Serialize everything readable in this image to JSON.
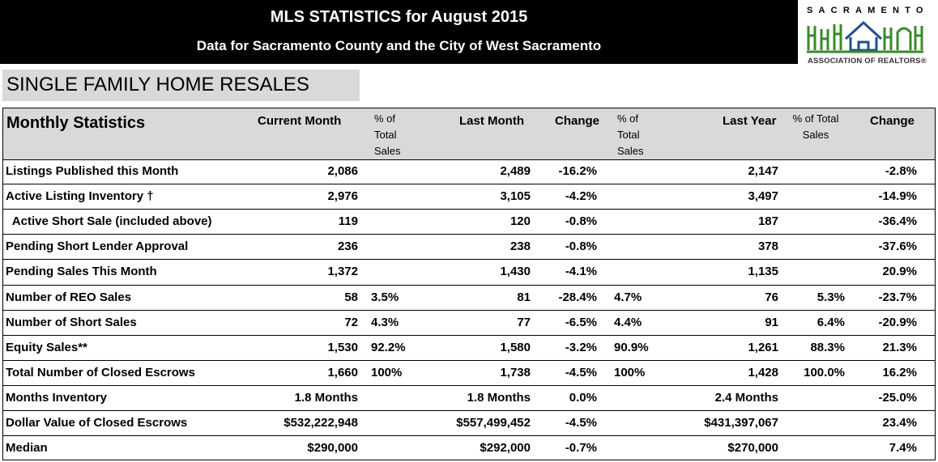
{
  "header": {
    "title": "MLS STATISTICS for August 2015",
    "subtitle": "Data for Sacramento County and the City of West Sacramento"
  },
  "logo": {
    "top_text": "SACRAMENTO",
    "bottom_text": "ASSOCIATION OF REALTORS®",
    "icon": "house-skyline-logo",
    "colors": {
      "green": "#3a8a2a",
      "blue": "#1f4f8f"
    }
  },
  "section_title": "SINGLE FAMILY HOME RESALES",
  "table": {
    "headers": {
      "label": "Monthly Statistics",
      "current_month": "Current Month",
      "pct_current": [
        "% of",
        "Total",
        "Sales"
      ],
      "last_month": "Last Month",
      "change1": "Change",
      "pct_last": [
        "% of",
        "Total",
        "Sales"
      ],
      "last_year": "Last Year",
      "pct_year": [
        "% of  Total",
        "Sales"
      ],
      "change2": "Change"
    },
    "rows": [
      {
        "label": "Listings Published this Month",
        "cur": "2,086",
        "cur_pct": "",
        "last": "2,489",
        "chg": "-16.2%",
        "last_pct": "",
        "year": "2,147",
        "year_pct": "",
        "chg2": "-2.8%"
      },
      {
        "label": "Active Listing Inventory †",
        "cur": "2,976",
        "cur_pct": "",
        "last": "3,105",
        "chg": "-4.2%",
        "last_pct": "",
        "year": "3,497",
        "year_pct": "",
        "chg2": "-14.9%"
      },
      {
        "label": "  Active Short Sale (included above)",
        "cur": "119",
        "cur_pct": "",
        "last": "120",
        "chg": "-0.8%",
        "last_pct": "",
        "year": "187",
        "year_pct": "",
        "chg2": "-36.4%"
      },
      {
        "label": "Pending Short Lender Approval",
        "cur": "236",
        "cur_pct": "",
        "last": "238",
        "chg": "-0.8%",
        "last_pct": "",
        "year": "378",
        "year_pct": "",
        "chg2": "-37.6%"
      },
      {
        "label": "Pending Sales This Month",
        "cur": "1,372",
        "cur_pct": "",
        "last": "1,430",
        "chg": "-4.1%",
        "last_pct": "",
        "year": "1,135",
        "year_pct": "",
        "chg2": "20.9%"
      },
      {
        "label": "Number of REO Sales",
        "cur": "58",
        "cur_pct": "3.5%",
        "last": "81",
        "chg": "-28.4%",
        "last_pct": "4.7%",
        "year": "76",
        "year_pct": "5.3%",
        "chg2": "-23.7%"
      },
      {
        "label": "Number of Short Sales",
        "cur": "72",
        "cur_pct": "4.3%",
        "last": "77",
        "chg": "-6.5%",
        "last_pct": "4.4%",
        "year": "91",
        "year_pct": "6.4%",
        "chg2": "-20.9%"
      },
      {
        "label": "Equity Sales**",
        "cur": "1,530",
        "cur_pct": "92.2%",
        "last": "1,580",
        "chg": "-3.2%",
        "last_pct": "90.9%",
        "year": "1,261",
        "year_pct": "88.3%",
        "chg2": "21.3%"
      },
      {
        "label": "Total Number of Closed Escrows",
        "cur": "1,660",
        "cur_pct": "100%",
        "last": "1,738",
        "chg": "-4.5%",
        "last_pct": "100%",
        "year": "1,428",
        "year_pct": "100.0%",
        "chg2": "16.2%"
      },
      {
        "label": "Months Inventory",
        "cur": "1.8 Months",
        "cur_pct": "",
        "last": "1.8 Months",
        "chg": "0.0%",
        "last_pct": "",
        "year": "2.4 Months",
        "year_pct": "",
        "chg2": "-25.0%"
      },
      {
        "label": "Dollar Value of Closed Escrows",
        "cur": "$532,222,948",
        "cur_pct": "",
        "last": "$557,499,452",
        "chg": "-4.5%",
        "last_pct": "",
        "year": "$431,397,067",
        "year_pct": "",
        "chg2": "23.4%"
      },
      {
        "label": "Median",
        "cur": "$290,000",
        "cur_pct": "",
        "last": "$292,000",
        "chg": "-0.7%",
        "last_pct": "",
        "year": "$270,000",
        "year_pct": "",
        "chg2": "7.4%"
      }
    ]
  }
}
